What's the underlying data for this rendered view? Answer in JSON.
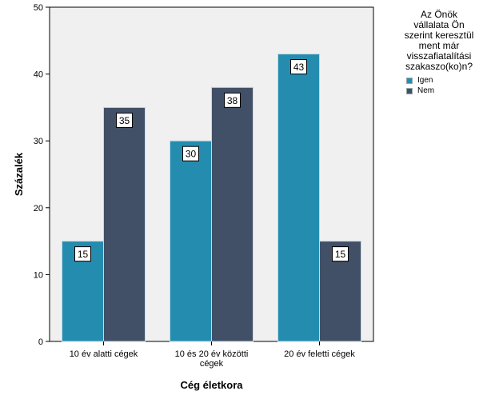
{
  "chart_data": {
    "type": "bar",
    "title": "",
    "xlabel": "Cég életkora",
    "ylabel": "Százalék",
    "ylim": [
      0,
      50
    ],
    "yticks": [
      0,
      10,
      20,
      30,
      40,
      50
    ],
    "categories": [
      [
        "10 év alatti cégek"
      ],
      [
        "10 és 20 év közötti",
        "cégek"
      ],
      [
        "20 év feletti cégek"
      ]
    ],
    "series": [
      {
        "name": "Igen",
        "values": [
          15,
          30,
          43
        ],
        "color": "#248daf"
      },
      {
        "name": "Nem",
        "values": [
          35,
          38,
          15
        ],
        "color": "#414f67"
      }
    ],
    "legend": {
      "title": "Az Önök\nvállalata Ön\nszerint keresztül\nment már\nvisszafiatalítási\nszakaszo(ko)n?",
      "position": "right"
    },
    "plot_background": "#f0f0f0",
    "grid": false
  }
}
